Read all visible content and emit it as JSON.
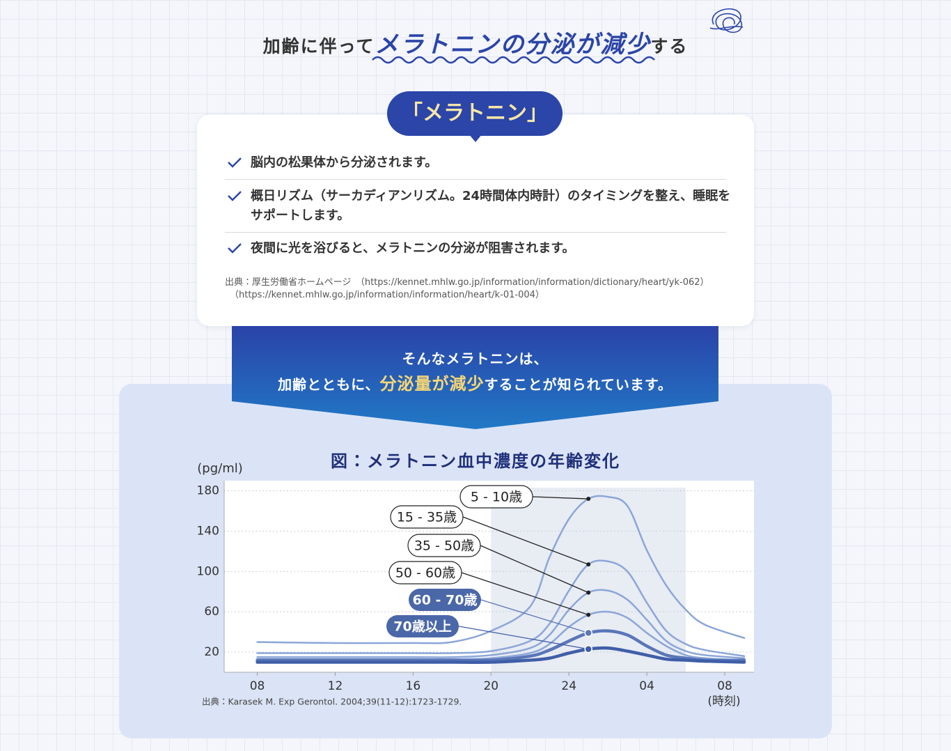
{
  "header": {
    "title_before": "加齢に伴って",
    "title_emphasis": "メラトニンの分泌が減少",
    "title_after": "する"
  },
  "card": {
    "label": "「メラトニン」",
    "items": [
      "脳内の松果体から分泌されます。",
      "概日リズム（サーカディアンリズム。24時間体内時計）のタイミングを整え、睡眠をサポートします。",
      "夜間に光を浴びると、メラトニンの分泌が阻害されます。"
    ],
    "source": [
      "出典：厚生労働省ホームページ　（https://kennet.mhlw.go.jp/information/information/dictionary/heart/yk-062）",
      "（https://kennet.mhlw.go.jp/information/information/heart/k-01-004）"
    ]
  },
  "banner": {
    "line1": "そんなメラトニンは、",
    "line2_before": "加齢とともに、",
    "line2_emphasis": "分泌量が減少",
    "line2_after": "することが知られています。"
  },
  "chart_data": {
    "type": "line",
    "title": "図：メラトニン血中濃度の年齢変化",
    "y_label": "(pg/ml)",
    "x_label": "(時刻)",
    "source": "出典：Karasek M. Exp Gerontol. 2004;39(11-12):1723-1729.",
    "x": [
      8,
      12,
      16,
      18,
      20,
      22,
      23,
      24,
      25,
      26,
      27,
      28,
      29,
      30,
      31,
      33
    ],
    "series": [
      {
        "name": "5 - 10歳",
        "color": "#8ba6d8",
        "width": 2.5,
        "values": [
          30,
          29,
          29,
          30,
          41,
          65,
          114,
          152,
          172,
          174,
          165,
          121,
          86,
          62,
          47,
          34
        ]
      },
      {
        "name": "15 - 35歳",
        "color": "#8ba6d8",
        "width": 2.5,
        "values": [
          19,
          19,
          19,
          19,
          21,
          31,
          48,
          81,
          107,
          110,
          100,
          69,
          41,
          28,
          22,
          16
        ]
      },
      {
        "name": "35 - 50歳",
        "color": "#8ba6d8",
        "width": 2.5,
        "values": [
          15,
          15,
          15,
          15,
          17,
          24,
          37,
          62,
          79,
          81,
          72,
          52,
          31,
          21,
          17,
          14
        ]
      },
      {
        "name": "50 - 60歳",
        "color": "#8ba6d8",
        "width": 2.5,
        "values": [
          13,
          13,
          13,
          13,
          14,
          19,
          28,
          45,
          57,
          60,
          54,
          39,
          26,
          17,
          14,
          12
        ]
      },
      {
        "name": "60 - 70歳",
        "color": "#5a76b8",
        "width": 4.5,
        "values": [
          12,
          12,
          12,
          12,
          12,
          16,
          22,
          31,
          39,
          41,
          37,
          26,
          17,
          14,
          12,
          12
        ]
      },
      {
        "name": "70歳以上",
        "color": "#3f5ea8",
        "width": 4.5,
        "values": [
          10,
          10,
          10,
          10,
          10,
          12,
          14,
          19,
          23,
          24,
          21,
          17,
          13,
          12,
          11,
          10
        ]
      }
    ],
    "xlim": [
      6.3,
      33.5
    ],
    "ylim": [
      0,
      190
    ],
    "xticks": [
      {
        "value": 8,
        "label": "08"
      },
      12,
      16,
      20,
      24,
      {
        "value": 28,
        "label": "04"
      },
      {
        "value": 32,
        "label": "08"
      }
    ],
    "yticks": [
      20,
      60,
      100,
      140,
      180
    ],
    "grid": true,
    "shaded_x": [
      20,
      30
    ]
  }
}
